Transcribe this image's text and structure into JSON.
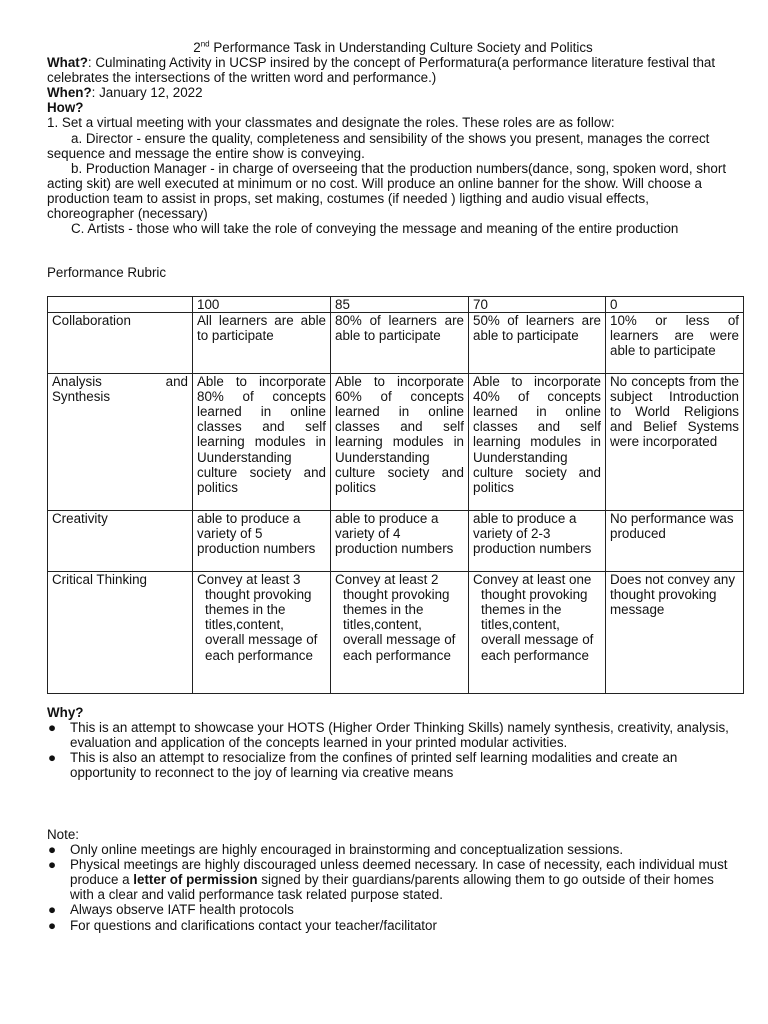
{
  "title": {
    "sup": "nd",
    "pre": "2",
    "text": "Performance Task in Understanding Culture Society and Politics"
  },
  "what": {
    "label": "What?",
    "text": ": Culminating Activity in UCSP insired by the concept of Performatura(a performance literature festival that celebrates the intersections of the written word and performance.)"
  },
  "when": {
    "label": "When?",
    "text": ": January 12, 2022"
  },
  "how": {
    "label": "How?",
    "step1": "1.  Set a virtual meeting with your classmates and designate the roles. These roles are as follow:",
    "roles": [
      "a. Director - ensure the quality, completeness and sensibility of the shows you present, manages the correct sequence and message the entire show is conveying.",
      "b. Production Manager - in charge of overseeing that the production numbers(dance, song, spoken word, short acting skit) are well executed at minimum or no cost. Will produce an online banner for the show. Will choose a production team to assist in props, set making, costumes (if needed ) ligthing and audio visual effects, choreographer (necessary)",
      "C. Artists - those who will take the role of conveying the message and meaning of the entire production"
    ]
  },
  "rubric": {
    "label": "Performance Rubric",
    "headers": [
      "",
      "100",
      "85",
      "70",
      "0"
    ],
    "rows": [
      [
        "Collaboration",
        "All learners are able to participate",
        "80% of learners are able to participate",
        "50% of learners are able to participate",
        "10% or less of learners are were able to participate"
      ],
      [
        "Analysis and Synthesis",
        "Able to incorporate 80% of concepts learned in online classes and self learning modules in Uunderstanding culture society and politics",
        "Able to incorporate 60% of concepts learned in online classes and self learning modules in Uunderstanding culture society and politics",
        "Able to incorporate 40% of concepts learned in online classes and self learning modules in Uunderstanding culture society and politics",
        "No concepts from the subject Introduction to World Religions and Belief Systems were incorporated"
      ],
      [
        "Creativity",
        "able to produce a variety of 5 production numbers",
        "able to produce a variety of 4 production numbers",
        "able to produce a variety of 2-3 production numbers",
        "No performance was produced"
      ],
      [
        "Critical Thinking",
        "Convey at least 3 thought provoking themes in the titles,content, overall message of each performance",
        "Convey at least 2 thought provoking themes in the titles,content, overall message of each performance",
        "Convey at least one thought provoking themes in the titles,content, overall message of each performance",
        "Does not convey any thought provoking message"
      ]
    ]
  },
  "why": {
    "label": "Why?",
    "items": [
      "This is an attempt to showcase your HOTS (Higher Order Thinking Skills) namely synthesis, creativity, analysis, evaluation and application of the concepts learned in your printed modular activities.",
      "This is also an attempt to resocialize from the confines of printed self learning modalities and create an opportunity to reconnect to the joy of learning via creative means"
    ]
  },
  "note": {
    "label": "Note:",
    "items": [
      {
        "text": "Only online meetings are highly encouraged in brainstorming and conceptualization sessions."
      },
      {
        "pre": "Physical meetings are highly discouraged unless deemed necessary. In case of necessity, each individual must produce a ",
        "bold": "letter of permission",
        "post": " signed by their guardians/parents allowing them to go outside of their homes with a clear and valid performance task related purpose stated."
      },
      {
        "text": "Always observe IATF health protocols"
      },
      {
        "text": "For questions and clarifications contact your teacher/facilitator"
      }
    ]
  },
  "bullet": "●"
}
